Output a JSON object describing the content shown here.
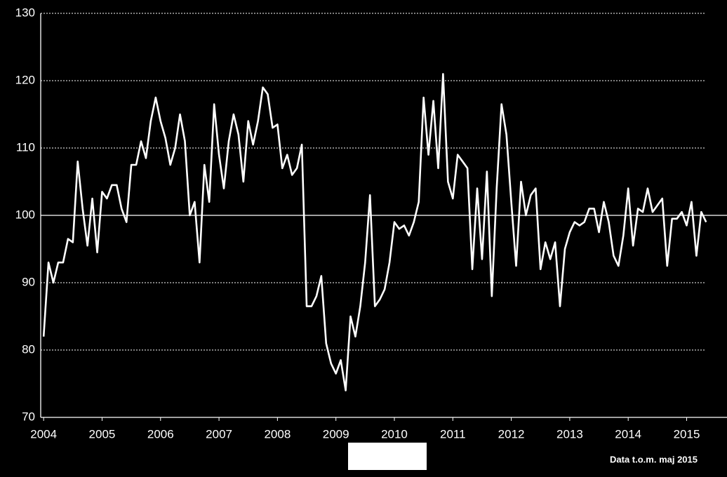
{
  "chart_data": {
    "type": "line",
    "note": "Data t.o.m. maj 2015",
    "x": [
      2004,
      2004.083,
      2004.167,
      2004.25,
      2004.333,
      2004.417,
      2004.5,
      2004.583,
      2004.667,
      2004.75,
      2004.833,
      2004.917,
      2005,
      2005.083,
      2005.167,
      2005.25,
      2005.333,
      2005.417,
      2005.5,
      2005.583,
      2005.667,
      2005.75,
      2005.833,
      2005.917,
      2006,
      2006.083,
      2006.167,
      2006.25,
      2006.333,
      2006.417,
      2006.5,
      2006.583,
      2006.667,
      2006.75,
      2006.833,
      2006.917,
      2007,
      2007.083,
      2007.167,
      2007.25,
      2007.333,
      2007.417,
      2007.5,
      2007.583,
      2007.667,
      2007.75,
      2007.833,
      2007.917,
      2008,
      2008.083,
      2008.167,
      2008.25,
      2008.333,
      2008.417,
      2008.5,
      2008.583,
      2008.667,
      2008.75,
      2008.833,
      2008.917,
      2009,
      2009.083,
      2009.167,
      2009.25,
      2009.333,
      2009.417,
      2009.5,
      2009.583,
      2009.667,
      2009.75,
      2009.833,
      2009.917,
      2010,
      2010.083,
      2010.167,
      2010.25,
      2010.333,
      2010.417,
      2010.5,
      2010.583,
      2010.667,
      2010.75,
      2010.833,
      2010.917,
      2011,
      2011.083,
      2011.167,
      2011.25,
      2011.333,
      2011.417,
      2011.5,
      2011.583,
      2011.667,
      2011.75,
      2011.833,
      2011.917,
      2012,
      2012.083,
      2012.167,
      2012.25,
      2012.333,
      2012.417,
      2012.5,
      2012.583,
      2012.667,
      2012.75,
      2012.833,
      2012.917,
      2013,
      2013.083,
      2013.167,
      2013.25,
      2013.333,
      2013.417,
      2013.5,
      2013.583,
      2013.667,
      2013.75,
      2013.833,
      2013.917,
      2014,
      2014.083,
      2014.167,
      2014.25,
      2014.333,
      2014.417,
      2014.5,
      2014.583,
      2014.667,
      2014.75,
      2014.833,
      2014.917,
      2015,
      2015.083,
      2015.167,
      2015.25,
      2015.333
    ],
    "values": [
      82,
      93,
      90,
      93,
      93,
      96.5,
      96,
      108,
      101,
      95.5,
      102.5,
      94.5,
      103.5,
      102.5,
      104.5,
      104.5,
      101,
      99,
      107.5,
      107.5,
      111,
      108.5,
      114,
      117.5,
      114,
      111.5,
      107.5,
      110,
      115,
      111,
      100,
      102,
      93,
      107.5,
      102,
      116.5,
      109,
      104,
      111,
      115,
      112,
      105,
      114,
      110.5,
      114,
      119,
      118,
      113,
      113.5,
      107,
      109,
      106,
      107,
      110.5,
      86.5,
      86.5,
      88,
      91,
      81,
      78,
      76.5,
      78.5,
      74,
      85,
      82,
      86.5,
      93,
      103,
      86.5,
      87.5,
      89,
      93,
      99,
      98,
      98.5,
      97,
      99,
      102,
      117.5,
      109,
      117,
      107,
      121,
      105,
      102.5,
      109,
      108,
      107,
      92,
      104,
      93.5,
      106.5,
      88,
      104,
      116.5,
      112,
      102,
      92.5,
      105,
      100,
      103,
      104,
      92,
      96,
      93.5,
      96,
      86.5,
      95,
      97.5,
      99,
      98.5,
      99,
      101,
      101,
      97.5,
      102,
      99,
      94,
      92.5,
      97,
      104,
      95.5,
      101,
      100.5,
      104,
      100.5,
      101.5,
      102.5,
      92.5,
      99.5,
      99.5,
      100.5,
      98.5,
      102,
      94,
      100.5,
      99
    ],
    "color": "#ffffff",
    "xlim": [
      2003.95,
      2015.45
    ],
    "xticks": [
      2004,
      2005,
      2006,
      2007,
      2008,
      2009,
      2010,
      2011,
      2012,
      2013,
      2014,
      2015
    ],
    "ylim": [
      70,
      130
    ],
    "yticks": [
      70,
      80,
      90,
      100,
      110,
      120,
      130
    ],
    "reference_line": 100,
    "grid": true
  }
}
